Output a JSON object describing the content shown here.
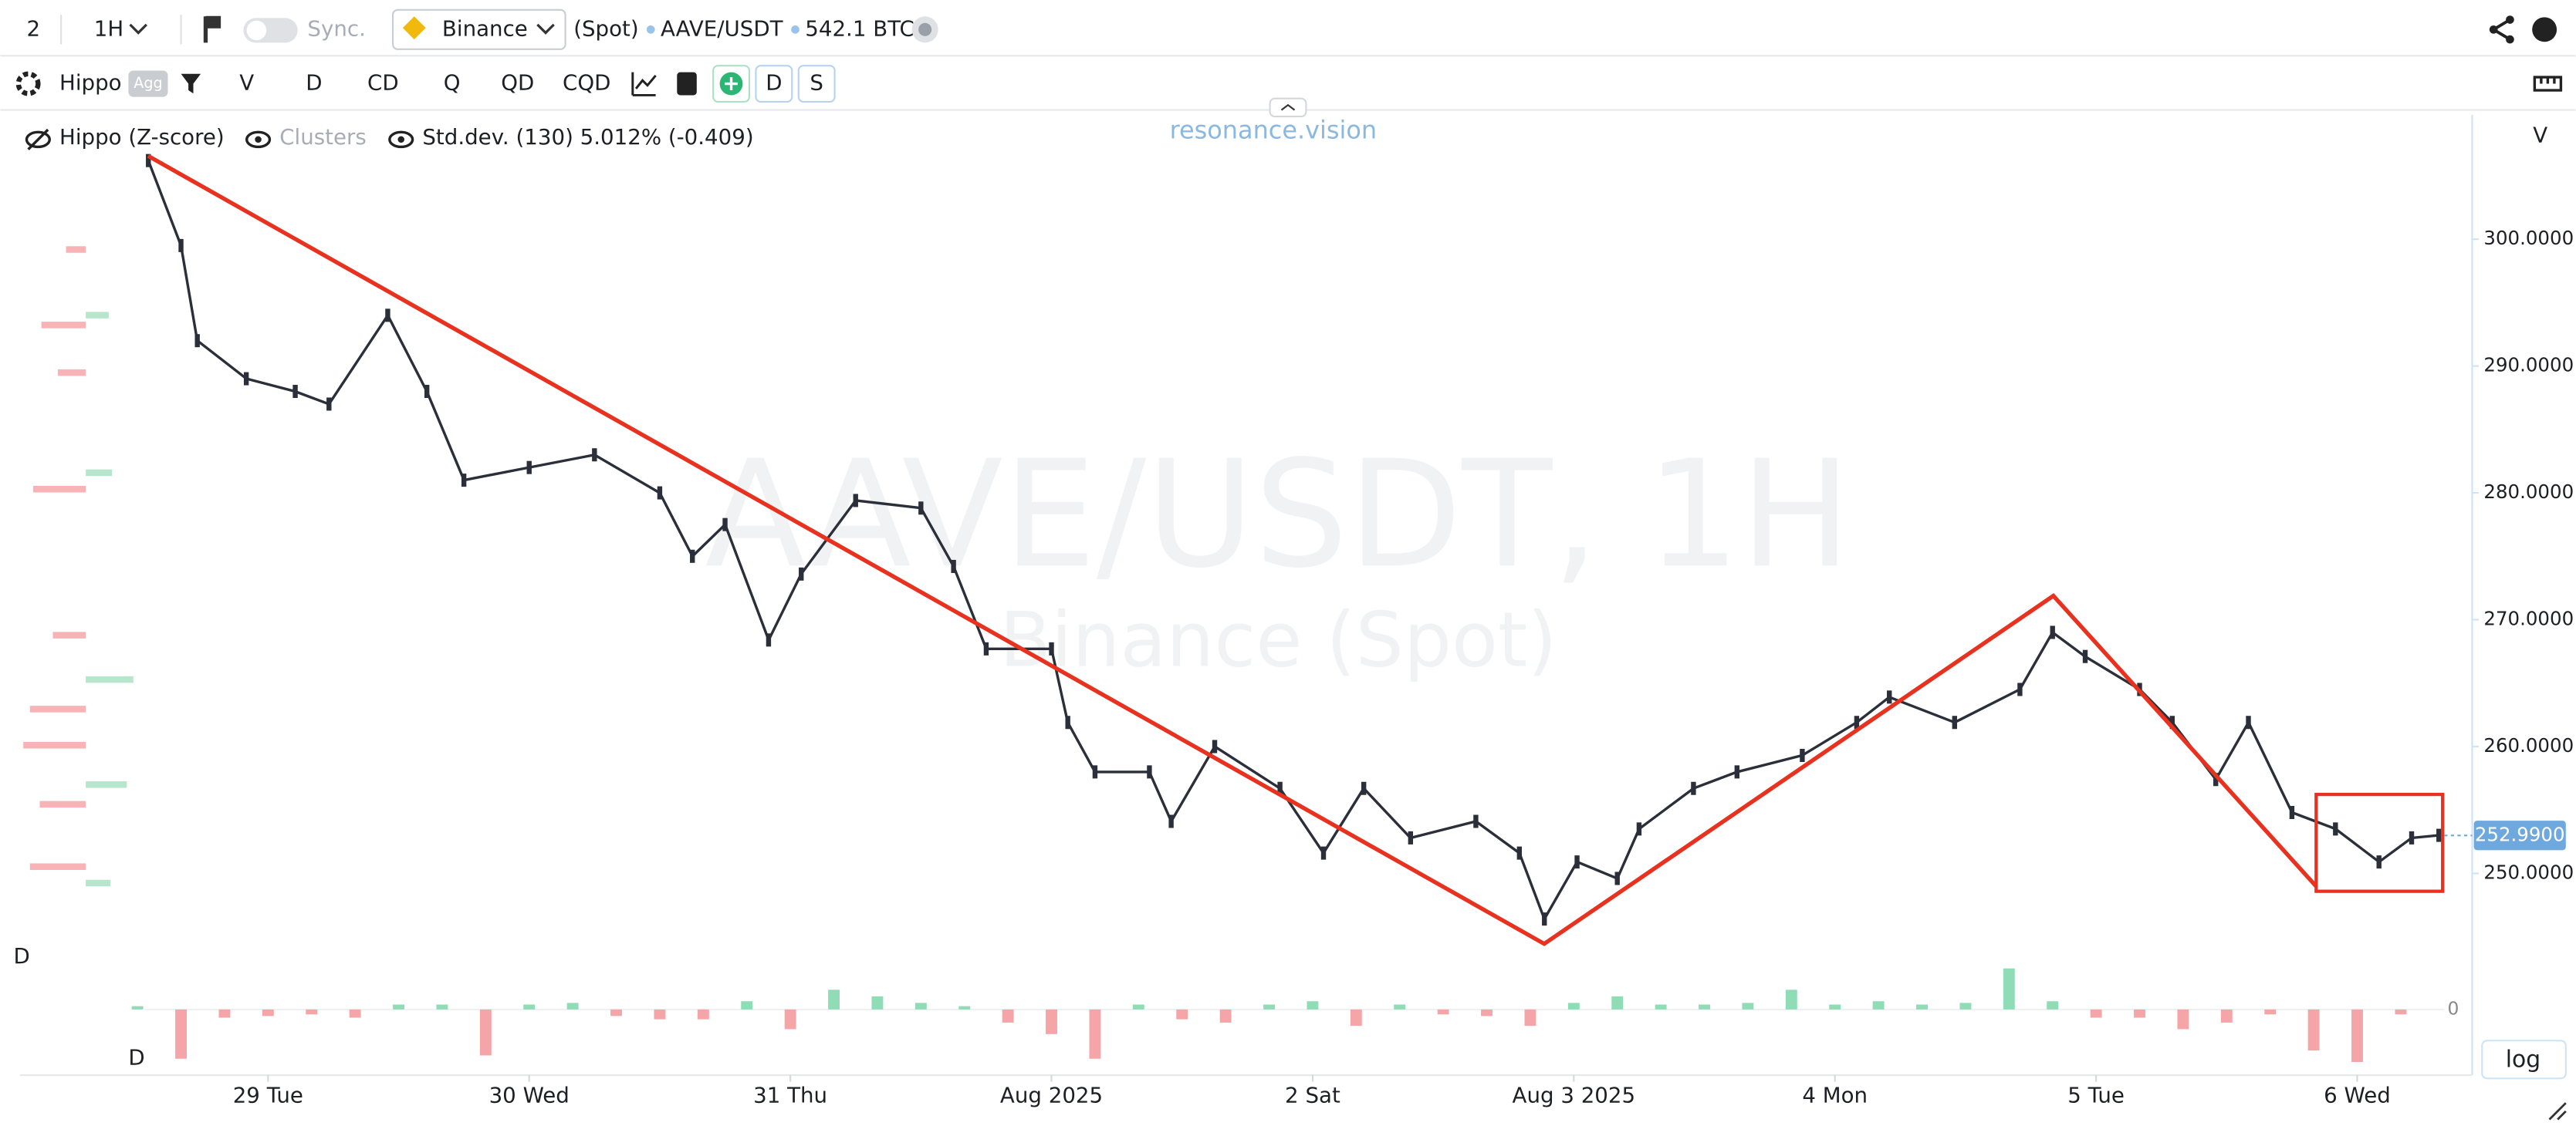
{
  "toolbar": {
    "layout_count": "2",
    "interval": "1H",
    "sync": "Sync.",
    "exchange": "Binance",
    "market": "(Spot)",
    "pair": "AAVE/USDT",
    "volume": "542.1 BTC"
  },
  "indicator_bar": {
    "indicator": "Hippo",
    "agg": "Agg",
    "buttons": [
      "V",
      "D",
      "CD",
      "Q",
      "QD",
      "CQD"
    ],
    "toggles": [
      "D",
      "S"
    ]
  },
  "legend": {
    "hippo": "Hippo (Z-score)",
    "clusters": "Clusters",
    "stddev": "Std.dev. (130) 5.012% (-0.409)"
  },
  "brand": "resonance.vision",
  "watermark": {
    "title": "AAVE/USDT, 1H",
    "subtitle": "Binance (Spot)"
  },
  "panel_labels": {
    "volume_axis": "V",
    "profile": "D",
    "delta": "D"
  },
  "log_button": "log",
  "chart": {
    "ylim": [
      243.8,
      309.8
    ],
    "yticks": [
      {
        "value": 300,
        "label": "300.0000"
      },
      {
        "value": 290,
        "label": "290.0000"
      },
      {
        "value": 280,
        "label": "280.0000"
      },
      {
        "value": 270,
        "label": "270.0000"
      },
      {
        "value": 260,
        "label": "260.0000"
      },
      {
        "value": 250,
        "label": "250.0000"
      }
    ],
    "xlim": [
      -12,
      200
    ],
    "xticks": [
      {
        "value": 0,
        "label": "29 Tue"
      },
      {
        "value": 24,
        "label": "30 Wed"
      },
      {
        "value": 48,
        "label": "31 Thu"
      },
      {
        "value": 72,
        "label": "Aug 2025"
      },
      {
        "value": 96,
        "label": "2 Sat"
      },
      {
        "value": 120,
        "label": "Aug 3 2025"
      },
      {
        "value": 144,
        "label": "4 Mon"
      },
      {
        "value": 168,
        "label": "5 Tue"
      },
      {
        "value": 192,
        "label": "6 Wed"
      }
    ],
    "last_price": {
      "value": 252.99,
      "label": "252.9900"
    },
    "price": {
      "color": "#2b2f3a",
      "x": [
        -11,
        -8,
        -6.5,
        -2,
        2.5,
        5.6,
        11,
        14.6,
        18,
        24,
        30,
        36,
        39,
        42,
        46,
        49,
        54,
        60,
        63,
        66,
        72,
        73.5,
        76,
        81,
        83,
        87,
        93,
        97,
        100.7,
        105,
        111,
        115,
        117.3,
        120.3,
        124,
        126,
        131,
        135,
        141,
        146,
        149,
        155,
        161,
        164,
        167,
        172,
        175,
        179,
        182,
        186,
        190,
        194,
        197,
        199.5
      ],
      "values": [
        306.2,
        299.5,
        292,
        289,
        288,
        287,
        294,
        288,
        281,
        282,
        283,
        280,
        275,
        277.5,
        268.4,
        273.6,
        279.4,
        278.8,
        274.2,
        267.7,
        267.7,
        261.9,
        258,
        258,
        254.1,
        260,
        256.7,
        251.6,
        256.7,
        252.8,
        254.1,
        251.6,
        246.4,
        250.9,
        249.6,
        253.5,
        256.7,
        258,
        259.3,
        261.9,
        263.9,
        261.9,
        264.5,
        269,
        267.1,
        264.5,
        261.9,
        257.4,
        261.9,
        254.8,
        253.5,
        250.9,
        252.8,
        253
      ]
    },
    "delta": {
      "up_color": "#8fdcb6",
      "down_color": "#f5a5a8",
      "ylim": [
        -35,
        35
      ],
      "yticks": [
        0
      ],
      "x": [
        -12,
        -8,
        -4,
        0,
        4,
        8,
        12,
        16,
        20,
        24,
        28,
        32,
        36,
        40,
        44,
        48,
        52,
        56,
        60,
        64,
        68,
        72,
        76,
        80,
        84,
        88,
        92,
        96,
        100,
        104,
        108,
        112,
        116,
        120,
        124,
        128,
        132,
        136,
        140,
        144,
        148,
        152,
        156,
        160,
        164,
        168,
        172,
        176,
        180,
        184,
        188,
        192,
        196
      ],
      "values": [
        2,
        -30,
        -5,
        -4,
        -3,
        -5,
        3,
        3,
        -28,
        3,
        4,
        -4,
        -6,
        -6,
        5,
        -12,
        12,
        8,
        4,
        2,
        -8,
        -15,
        -30,
        3,
        -6,
        -8,
        3,
        5,
        -10,
        3,
        -3,
        -4,
        -10,
        4,
        8,
        3,
        3,
        4,
        12,
        3,
        5,
        3,
        4,
        25,
        5,
        -5,
        -5,
        -12,
        -8,
        -3,
        -25,
        -32,
        -3
      ]
    }
  }
}
